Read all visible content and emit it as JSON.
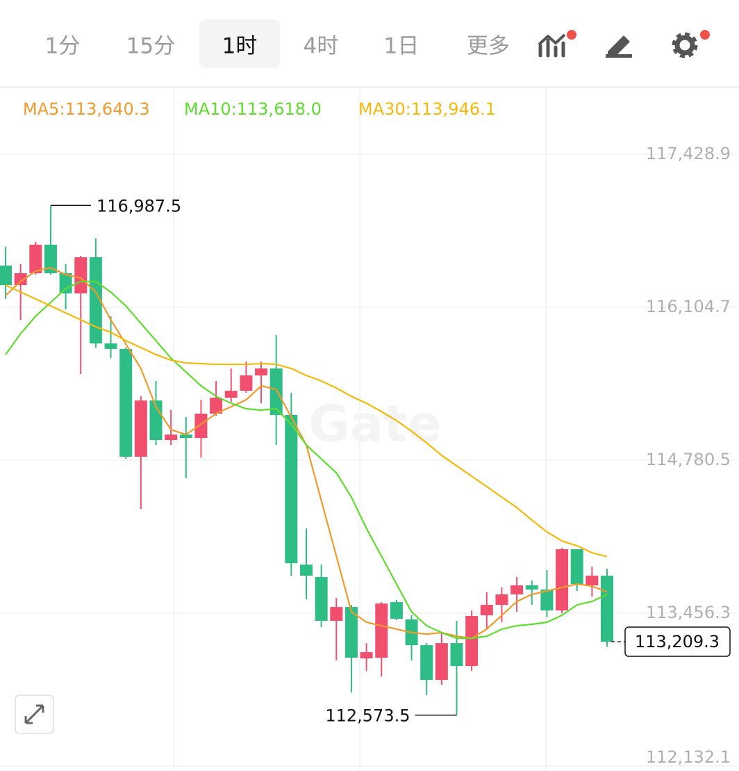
{
  "tabs": [
    {
      "label": "1分",
      "active": false
    },
    {
      "label": "15分",
      "active": false
    },
    {
      "label": "1时",
      "active": true
    },
    {
      "label": "4时",
      "active": false
    },
    {
      "label": "1日",
      "active": false
    },
    {
      "label": "更多",
      "active": false
    }
  ],
  "chart_data": {
    "type": "candlestick",
    "watermark": "Gate",
    "up_color": "#f0506e",
    "down_color": "#2ebd85",
    "ylim": [
      112090,
      118013
    ],
    "yticks": [
      {
        "value": 117428.9,
        "label": "117,428.9"
      },
      {
        "value": 116104.7,
        "label": "116,104.7"
      },
      {
        "value": 114780.5,
        "label": "114,780.5"
      },
      {
        "value": 113456.3,
        "label": "113,456.3"
      },
      {
        "value": 112132.1,
        "label": "112,132.1"
      }
    ],
    "grid": true,
    "open": [
      116466,
      116297,
      116400,
      116647,
      116400,
      116225,
      116538,
      115792,
      115744,
      114811,
      115298,
      114955,
      115003,
      114973,
      115184,
      115322,
      115382,
      115515,
      115575,
      115172,
      113877,
      113769,
      113390,
      113510,
      113065,
      113071,
      113552,
      113402,
      113179,
      112878,
      113197,
      112999,
      113438,
      113528,
      113619,
      113697,
      113661,
      113480,
      114010,
      113697,
      113781
    ],
    "high": [
      116629,
      116478,
      116671,
      116987.5,
      116478,
      116550,
      116701,
      116027,
      115756,
      115334,
      115467,
      115214,
      115154,
      115304,
      115467,
      115575,
      115635,
      115635,
      115864,
      115364,
      114190,
      113877,
      113588,
      113528,
      113197,
      113552,
      113570,
      113438,
      113197,
      113288,
      113390,
      113480,
      113637,
      113679,
      113769,
      113739,
      113829,
      114022,
      114010,
      113859,
      113841
    ],
    "low": [
      116177,
      115996,
      116388,
      116388,
      116087,
      115527,
      115756,
      115665,
      114792,
      114359,
      114913,
      114913,
      114624,
      114804,
      115166,
      115286,
      115364,
      115274,
      114913,
      113781,
      113576,
      113336,
      113047,
      112770,
      112956,
      112908,
      113396,
      113047,
      112746,
      112836,
      112573.5,
      112956,
      113318,
      113378,
      113468,
      113528,
      113420,
      113456,
      113649,
      113600,
      113167
    ],
    "close": [
      116297,
      116400,
      116647,
      116400,
      116225,
      116538,
      115792,
      115744,
      114811,
      115298,
      114955,
      115003,
      114973,
      115184,
      115322,
      115382,
      115515,
      115575,
      115172,
      113889,
      113781,
      113390,
      113510,
      113071,
      113119,
      113540,
      113408,
      113179,
      112878,
      113197,
      112999,
      113432,
      113528,
      113619,
      113697,
      113661,
      113480,
      114010,
      113709,
      113781,
      113209.3
    ],
    "high_label": "116,987.5",
    "low_label": "112,573.5",
    "last_price_label": "113,209.3",
    "series": [
      {
        "name": "MA5:113,640.3",
        "color": "#f09a2a",
        "values": [
          116207,
          116328,
          116418,
          116448,
          116388,
          116358,
          116237,
          115996,
          115786,
          115575,
          115244,
          115045,
          115003,
          115093,
          115184,
          115244,
          115304,
          115425,
          115394,
          115154,
          114913,
          114431,
          113950,
          113468,
          113378,
          113348,
          113318,
          113288,
          113275,
          113288,
          113257,
          113239,
          113318,
          113438,
          113558,
          113619,
          113649,
          113679,
          113709,
          113691,
          113640.3
        ]
      },
      {
        "name": "MA10:113,618.0",
        "color": "#5fdc2e",
        "values": [
          115695,
          115876,
          116027,
          116147,
          116267,
          116328,
          116328,
          116237,
          116117,
          115966,
          115816,
          115665,
          115545,
          115425,
          115334,
          115274,
          115226,
          115214,
          115226,
          115093,
          114913,
          114792,
          114672,
          114461,
          114190,
          113950,
          113709,
          113468,
          113348,
          113288,
          113239,
          113239,
          113257,
          113318,
          113348,
          113360,
          113378,
          113438,
          113528,
          113558,
          113618
        ]
      },
      {
        "name": "MA30:113,946.1",
        "color": "#f5b90a",
        "values": [
          116297,
          116237,
          116177,
          116117,
          116057,
          115996,
          115936,
          115888,
          115816,
          115756,
          115695,
          115647,
          115623,
          115617,
          115611,
          115611,
          115611,
          115617,
          115611,
          115575,
          115515,
          115467,
          115406,
          115334,
          115274,
          115202,
          115124,
          115033,
          114931,
          114823,
          114732,
          114642,
          114552,
          114461,
          114371,
          114263,
          114160,
          114082,
          114040,
          113980,
          113946.1
        ]
      }
    ]
  }
}
